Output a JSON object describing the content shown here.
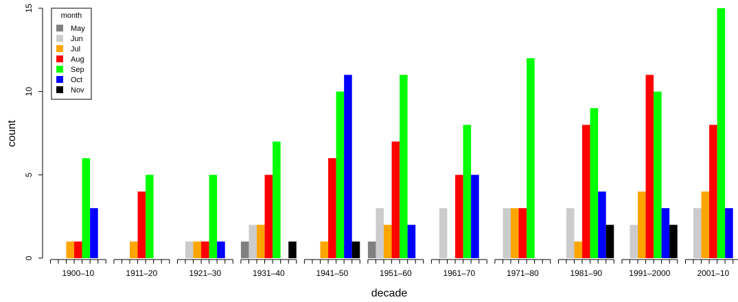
{
  "chart_data": {
    "type": "bar",
    "title": "",
    "xlabel": "decade",
    "ylabel": "count",
    "ylim": [
      0,
      15
    ],
    "yticks": [
      0,
      5,
      10,
      15
    ],
    "grid": false,
    "legend": {
      "title": "month",
      "position": "top-left"
    },
    "categories": [
      "1900–10",
      "1911–20",
      "1921–30",
      "1931–40",
      "1941–50",
      "1951–60",
      "1961–70",
      "1971–80",
      "1981–90",
      "1991–2000",
      "2001–10"
    ],
    "series": [
      {
        "name": "May",
        "color": "#808080",
        "values": [
          0,
          0,
          0,
          1,
          0,
          1,
          0,
          0,
          0,
          0,
          0
        ]
      },
      {
        "name": "Jun",
        "color": "#cccccc",
        "values": [
          0,
          0,
          1,
          2,
          0,
          3,
          3,
          3,
          3,
          2,
          3
        ]
      },
      {
        "name": "Jul",
        "color": "#ffa500",
        "values": [
          1,
          1,
          1,
          2,
          1,
          2,
          0,
          3,
          1,
          4,
          4
        ]
      },
      {
        "name": "Aug",
        "color": "#ff0000",
        "values": [
          1,
          4,
          1,
          5,
          6,
          7,
          5,
          3,
          8,
          11,
          8
        ]
      },
      {
        "name": "Sep",
        "color": "#00ff00",
        "values": [
          6,
          5,
          5,
          7,
          10,
          11,
          8,
          12,
          9,
          10,
          15
        ]
      },
      {
        "name": "Oct",
        "color": "#0000ff",
        "values": [
          3,
          0,
          1,
          0,
          11,
          2,
          5,
          0,
          4,
          3,
          3
        ]
      },
      {
        "name": "Nov",
        "color": "#000000",
        "values": [
          0,
          0,
          0,
          1,
          1,
          0,
          0,
          0,
          2,
          2,
          0
        ]
      }
    ]
  }
}
